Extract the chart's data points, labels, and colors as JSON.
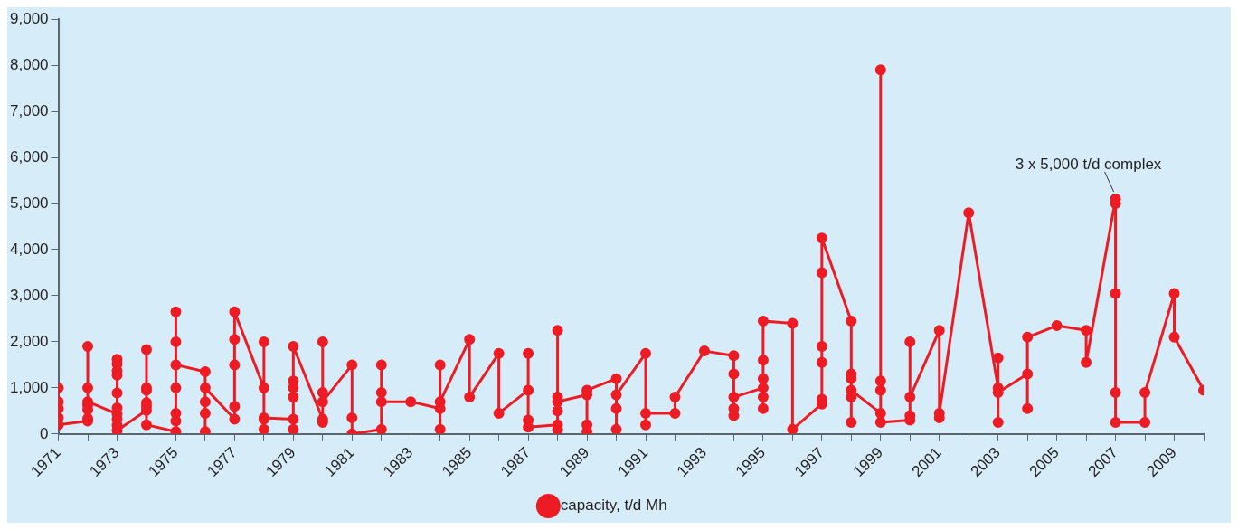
{
  "chart_data": {
    "type": "line",
    "marker": "circle",
    "grid": false,
    "legend": "bottom",
    "x": [
      1971,
      1971,
      1971,
      1971,
      1971,
      1972,
      1972,
      1972,
      1972,
      1972,
      1972,
      1972,
      1973,
      1973,
      1973,
      1973,
      1973,
      1973,
      1973,
      1973,
      1973,
      1973,
      1974,
      1974,
      1974,
      1974,
      1974,
      1974,
      1974,
      1975,
      1975,
      1975,
      1975,
      1975,
      1975,
      1975,
      1976,
      1976,
      1976,
      1976,
      1976,
      1977,
      1977,
      1977,
      1977,
      1977,
      1978,
      1978,
      1978,
      1978,
      1978,
      1979,
      1979,
      1979,
      1979,
      1979,
      1979,
      1980,
      1980,
      1980,
      1980,
      1980,
      1981,
      1981,
      1981,
      1982,
      1982,
      1982,
      1982,
      1983,
      1984,
      1984,
      1984,
      1984,
      1985,
      1985,
      1986,
      1986,
      1987,
      1987,
      1987,
      1987,
      1988,
      1988,
      1988,
      1988,
      1988,
      1988,
      1989,
      1989,
      1989,
      1989,
      1990,
      1990,
      1990,
      1990,
      1991,
      1991,
      1991,
      1992,
      1992,
      1993,
      1994,
      1994,
      1994,
      1994,
      1994,
      1995,
      1995,
      1995,
      1995,
      1995,
      1995,
      1996,
      1996,
      1997,
      1997,
      1997,
      1997,
      1997,
      1997,
      1998,
      1998,
      1998,
      1998,
      1998,
      1998,
      1999,
      1999,
      1999,
      1999,
      1999,
      2000,
      2000,
      2000,
      2000,
      2001,
      2001,
      2001,
      2002,
      2003,
      2003,
      2003,
      2003,
      2004,
      2004,
      2004,
      2005,
      2006,
      2006,
      2007,
      2007,
      2007,
      2007,
      2007,
      2008,
      2008,
      2009,
      2009,
      2010
    ],
    "series": [
      {
        "name": "capacity, t/d Mh",
        "color": "#ed1c24",
        "values": [
          1000,
          700,
          550,
          350,
          200,
          280,
          335,
          525,
          1900,
          1000,
          625,
          700,
          435,
          1620,
          1520,
          1370,
          1275,
          890,
          565,
          320,
          190,
          75,
          510,
          1830,
          1000,
          950,
          680,
          600,
          200,
          50,
          2650,
          2000,
          1000,
          450,
          280,
          1500,
          1350,
          450,
          50,
          700,
          1000,
          320,
          600,
          1500,
          2050,
          2650,
          1000,
          2000,
          100,
          320,
          350,
          320,
          100,
          800,
          1000,
          1150,
          1900,
          320,
          250,
          2000,
          900,
          700,
          1500,
          350,
          0,
          100,
          1500,
          900,
          700,
          700,
          550,
          1500,
          100,
          700,
          2050,
          800,
          1750,
          450,
          950,
          1750,
          300,
          150,
          200,
          2250,
          100,
          500,
          800,
          700,
          850,
          50,
          200,
          950,
          1200,
          100,
          550,
          850,
          1750,
          200,
          450,
          450,
          800,
          1800,
          1700,
          400,
          550,
          1300,
          800,
          1000,
          550,
          800,
          1200,
          1600,
          2450,
          2400,
          100,
          650,
          750,
          1550,
          1900,
          3500,
          4250,
          2450,
          1300,
          1200,
          250,
          800,
          950,
          450,
          7900,
          1150,
          950,
          250,
          300,
          400,
          2000,
          800,
          2250,
          350,
          450,
          4800,
          1000,
          1650,
          250,
          900,
          1300,
          550,
          2100,
          2350,
          2250,
          1550,
          5100,
          5000,
          3050,
          900,
          250,
          250,
          900,
          3050,
          2100,
          950
        ]
      }
    ],
    "xlim": [
      1971,
      2010
    ],
    "xticks": [
      {
        "value": 1971,
        "label": "1971"
      },
      {
        "value": 1972,
        "label": null
      },
      {
        "value": 1973,
        "label": "1973"
      },
      {
        "value": 1974,
        "label": null
      },
      {
        "value": 1975,
        "label": "1975"
      },
      {
        "value": 1976,
        "label": null
      },
      {
        "value": 1977,
        "label": "1977"
      },
      {
        "value": 1978,
        "label": null
      },
      {
        "value": 1979,
        "label": "1979"
      },
      {
        "value": 1980,
        "label": null
      },
      {
        "value": 1981,
        "label": "1981"
      },
      {
        "value": 1982,
        "label": null
      },
      {
        "value": 1983,
        "label": "1983"
      },
      {
        "value": 1984,
        "label": null
      },
      {
        "value": 1985,
        "label": "1985"
      },
      {
        "value": 1986,
        "label": null
      },
      {
        "value": 1987,
        "label": "1987"
      },
      {
        "value": 1988,
        "label": null
      },
      {
        "value": 1989,
        "label": "1989"
      },
      {
        "value": 1990,
        "label": null
      },
      {
        "value": 1991,
        "label": "1991"
      },
      {
        "value": 1992,
        "label": null
      },
      {
        "value": 1993,
        "label": "1993"
      },
      {
        "value": 1994,
        "label": null
      },
      {
        "value": 1995,
        "label": "1995"
      },
      {
        "value": 1996,
        "label": null
      },
      {
        "value": 1997,
        "label": "1997"
      },
      {
        "value": 1998,
        "label": null
      },
      {
        "value": 1999,
        "label": "1999"
      },
      {
        "value": 2000,
        "label": null
      },
      {
        "value": 2001,
        "label": "2001"
      },
      {
        "value": 2002,
        "label": null
      },
      {
        "value": 2003,
        "label": "2003"
      },
      {
        "value": 2004,
        "label": null
      },
      {
        "value": 2005,
        "label": "2005"
      },
      {
        "value": 2006,
        "label": null
      },
      {
        "value": 2007,
        "label": "2007"
      },
      {
        "value": 2008,
        "label": null
      },
      {
        "value": 2009,
        "label": "2009"
      },
      {
        "value": 2010,
        "label": null
      }
    ],
    "ylim": [
      0,
      9000
    ],
    "yticks": [
      0,
      {
        "value": 1000,
        "label": "1,000"
      },
      {
        "value": 2000,
        "label": "2,000"
      },
      {
        "value": 3000,
        "label": "3,000"
      },
      {
        "value": 4000,
        "label": "4,000"
      },
      {
        "value": 5000,
        "label": "5,000"
      },
      {
        "value": 6000,
        "label": "6,000"
      },
      {
        "value": 7000,
        "label": "7,000"
      },
      {
        "value": 8000,
        "label": "8,000"
      },
      {
        "value": 9000,
        "label": "9,000"
      }
    ],
    "annotations": [
      {
        "text": "3 x 5,000 t/d complex",
        "x": 2007,
        "y": 5100
      }
    ]
  }
}
